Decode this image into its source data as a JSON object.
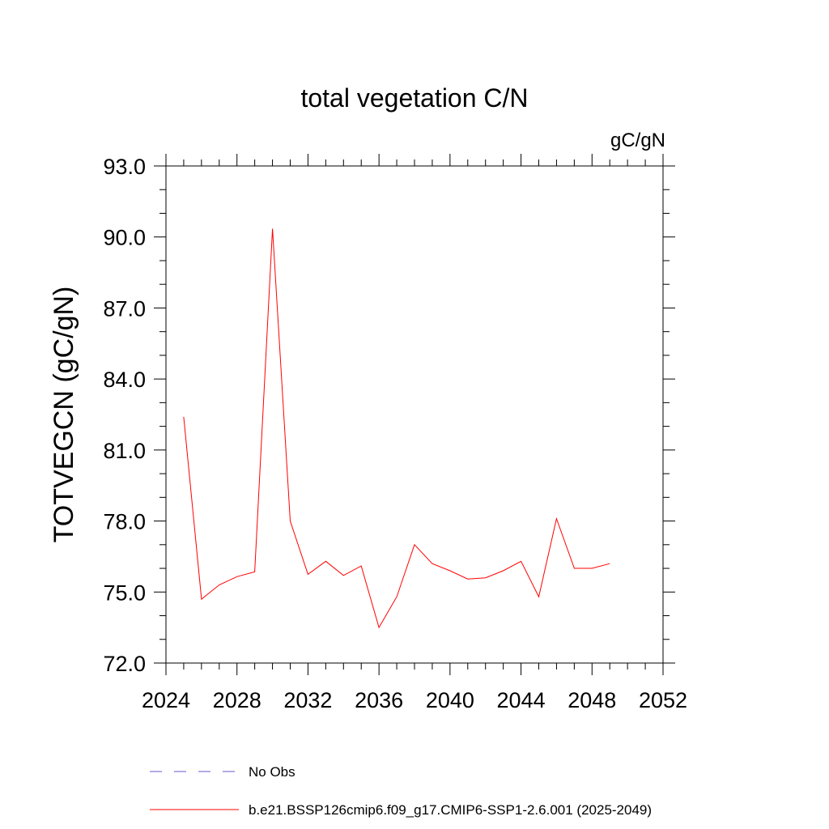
{
  "chart_data": {
    "type": "line",
    "title": "total vegetation C/N",
    "units_label": "gC/gN",
    "xlabel": "",
    "ylabel": "TOTVEGCN  (gC/gN)",
    "xlim": [
      2024,
      2052
    ],
    "ylim": [
      72.0,
      93.0
    ],
    "x_ticks": [
      2024,
      2028,
      2032,
      2036,
      2040,
      2044,
      2048,
      2052
    ],
    "x_tick_labels": [
      "2024",
      "2028",
      "2032",
      "2036",
      "2040",
      "2044",
      "2048",
      "2052"
    ],
    "y_ticks": [
      72.0,
      75.0,
      78.0,
      81.0,
      84.0,
      87.0,
      90.0,
      93.0
    ],
    "y_tick_labels": [
      "72.0",
      "75.0",
      "78.0",
      "81.0",
      "84.0",
      "87.0",
      "90.0",
      "93.0"
    ],
    "grid": false,
    "series": [
      {
        "name": "b.e21.BSSP126cmip6.f09_g17.CMIP6-SSP1-2.6.001 (2025-2049)",
        "color": "#ff0000",
        "style": "solid",
        "x": [
          2025,
          2026,
          2027,
          2028,
          2029,
          2030,
          2031,
          2032,
          2033,
          2034,
          2035,
          2036,
          2037,
          2038,
          2039,
          2040,
          2041,
          2042,
          2043,
          2044,
          2045,
          2046,
          2047,
          2048,
          2049
        ],
        "y": [
          82.4,
          74.7,
          75.3,
          75.65,
          75.85,
          90.35,
          78.0,
          75.75,
          76.3,
          75.7,
          76.1,
          73.5,
          74.8,
          77.0,
          76.2,
          75.9,
          75.55,
          75.6,
          75.9,
          76.3,
          74.8,
          78.1,
          76.0,
          76.0,
          76.2
        ]
      }
    ],
    "legend": [
      {
        "label": "No Obs",
        "color": "#6a5acd",
        "style": "dashed"
      },
      {
        "label": "b.e21.BSSP126cmip6.f09_g17.CMIP6-SSP1-2.6.001 (2025-2049)",
        "color": "#ff0000",
        "style": "solid"
      }
    ],
    "legend_position": "bottom"
  }
}
